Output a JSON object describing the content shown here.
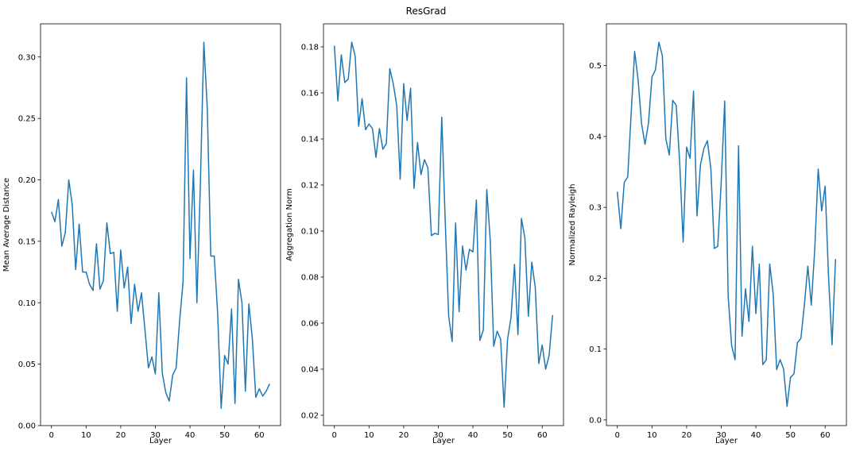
{
  "chart_data": {
    "suptitle": "ResGrad",
    "charts": [
      {
        "type": "line",
        "xlabel": "Layer",
        "ylabel": "Mean Average Distance",
        "xlim": [
          -3.15,
          66.15
        ],
        "ylim": [
          -0.0,
          0.327
        ],
        "xticks": [
          0,
          10,
          20,
          30,
          40,
          50,
          60
        ],
        "yticks": [
          "0.00",
          "0.05",
          "0.10",
          "0.15",
          "0.20",
          "0.25",
          "0.30"
        ],
        "grid": false,
        "series": [
          {
            "color": "#1f77b4",
            "x": [
              0,
              1,
              2,
              3,
              4,
              5,
              6,
              7,
              8,
              9,
              10,
              11,
              12,
              13,
              14,
              15,
              16,
              17,
              18,
              19,
              20,
              21,
              22,
              23,
              24,
              25,
              26,
              27,
              28,
              29,
              30,
              31,
              32,
              33,
              34,
              35,
              36,
              37,
              38,
              39,
              40,
              41,
              42,
              43,
              44,
              45,
              46,
              47,
              48,
              49,
              50,
              51,
              52,
              53,
              54,
              55,
              56,
              57,
              58,
              59,
              60,
              61,
              62,
              63
            ],
            "y": [
              0.174,
              0.166,
              0.184,
              0.146,
              0.157,
              0.2,
              0.18,
              0.127,
              0.164,
              0.125,
              0.125,
              0.115,
              0.11,
              0.148,
              0.111,
              0.118,
              0.165,
              0.14,
              0.141,
              0.093,
              0.143,
              0.112,
              0.129,
              0.083,
              0.115,
              0.093,
              0.108,
              0.078,
              0.047,
              0.056,
              0.042,
              0.108,
              0.043,
              0.027,
              0.02,
              0.041,
              0.047,
              0.085,
              0.117,
              0.283,
              0.136,
              0.208,
              0.1,
              0.197,
              0.312,
              0.258,
              0.138,
              0.138,
              0.091,
              0.014,
              0.057,
              0.05,
              0.095,
              0.018,
              0.119,
              0.1,
              0.028,
              0.099,
              0.071,
              0.023,
              0.03,
              0.024,
              0.028,
              0.034
            ]
          }
        ]
      },
      {
        "type": "line",
        "xlabel": "Layer",
        "ylabel": "Aggregation Norm",
        "xlim": [
          -3.15,
          66.15
        ],
        "ylim": [
          0.0155,
          0.19
        ],
        "xticks": [
          0,
          10,
          20,
          30,
          40,
          50,
          60
        ],
        "yticks": [
          "0.02",
          "0.04",
          "0.06",
          "0.08",
          "0.10",
          "0.12",
          "0.14",
          "0.16",
          "0.18"
        ],
        "grid": false,
        "series": [
          {
            "color": "#1f77b4",
            "x": [
              0,
              1,
              2,
              3,
              4,
              5,
              6,
              7,
              8,
              9,
              10,
              11,
              12,
              13,
              14,
              15,
              16,
              17,
              18,
              19,
              20,
              21,
              22,
              23,
              24,
              25,
              26,
              27,
              28,
              29,
              30,
              31,
              32,
              33,
              34,
              35,
              36,
              37,
              38,
              39,
              40,
              41,
              42,
              43,
              44,
              45,
              46,
              47,
              48,
              49,
              50,
              51,
              52,
              53,
              54,
              55,
              56,
              57,
              58,
              59,
              60,
              61,
              62,
              63
            ],
            "y": [
              0.1805,
              0.1565,
              0.1765,
              0.1645,
              0.166,
              0.182,
              0.176,
              0.1455,
              0.1575,
              0.144,
              0.1465,
              0.1445,
              0.132,
              0.1445,
              0.1355,
              0.138,
              0.1705,
              0.164,
              0.1545,
              0.1225,
              0.164,
              0.148,
              0.162,
              0.1185,
              0.1385,
              0.1245,
              0.131,
              0.1275,
              0.098,
              0.099,
              0.0985,
              0.1495,
              0.1045,
              0.063,
              0.052,
              0.1035,
              0.065,
              0.0935,
              0.083,
              0.092,
              0.091,
              0.1135,
              0.0525,
              0.057,
              0.118,
              0.096,
              0.05,
              0.0565,
              0.053,
              0.0235,
              0.053,
              0.0625,
              0.0855,
              0.055,
              0.1055,
              0.097,
              0.063,
              0.0865,
              0.0755,
              0.0425,
              0.0505,
              0.04,
              0.046,
              0.0635
            ]
          }
        ]
      },
      {
        "type": "line",
        "xlabel": "Layer",
        "ylabel": "Normalized Rayleigh",
        "xlim": [
          -3.15,
          66.15
        ],
        "ylim": [
          -0.008,
          0.559
        ],
        "xticks": [
          0,
          10,
          20,
          30,
          40,
          50,
          60
        ],
        "yticks": [
          "0.0",
          "0.1",
          "0.2",
          "0.3",
          "0.4",
          "0.5"
        ],
        "grid": false,
        "series": [
          {
            "color": "#1f77b4",
            "x": [
              0,
              1,
              2,
              3,
              4,
              5,
              6,
              7,
              8,
              9,
              10,
              11,
              12,
              13,
              14,
              15,
              16,
              17,
              18,
              19,
              20,
              21,
              22,
              23,
              24,
              25,
              26,
              27,
              28,
              29,
              30,
              31,
              32,
              33,
              34,
              35,
              36,
              37,
              38,
              39,
              40,
              41,
              42,
              43,
              44,
              45,
              46,
              47,
              48,
              49,
              50,
              51,
              52,
              53,
              54,
              55,
              56,
              57,
              58,
              59,
              60,
              61,
              62,
              63
            ],
            "y": [
              0.322,
              0.27,
              0.335,
              0.343,
              0.433,
              0.52,
              0.48,
              0.418,
              0.389,
              0.419,
              0.484,
              0.494,
              0.533,
              0.514,
              0.397,
              0.374,
              0.451,
              0.444,
              0.364,
              0.251,
              0.385,
              0.369,
              0.464,
              0.288,
              0.36,
              0.383,
              0.394,
              0.355,
              0.242,
              0.245,
              0.336,
              0.45,
              0.175,
              0.105,
              0.085,
              0.387,
              0.118,
              0.185,
              0.139,
              0.245,
              0.15,
              0.22,
              0.078,
              0.085,
              0.22,
              0.178,
              0.071,
              0.085,
              0.072,
              0.019,
              0.06,
              0.065,
              0.109,
              0.115,
              0.162,
              0.217,
              0.162,
              0.241,
              0.354,
              0.295,
              0.33,
              0.2,
              0.106,
              0.227
            ]
          }
        ]
      }
    ]
  }
}
